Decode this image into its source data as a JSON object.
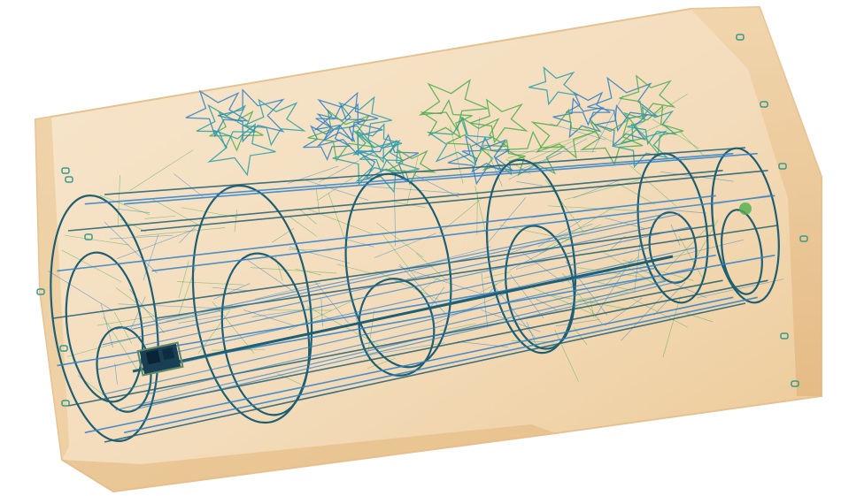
{
  "image": {
    "kind": "xray-scan",
    "colors": {
      "background": "#ffffff",
      "container_fill": "#f4dfc0",
      "container_edge": "#e9c48f",
      "container_shadow": "#dcb07a",
      "cylinder_stroke": "#1f5f73",
      "wire_blue": "#2f80c8",
      "wire_green": "#4fae4f",
      "wire_teal": "#2aa0a8",
      "dense_object": "#0f2f45",
      "clip_mark": "#3a9a8a"
    },
    "icons": [
      "container-outline",
      "wire-cylinders",
      "star-wire-cluster",
      "dense-object"
    ]
  }
}
